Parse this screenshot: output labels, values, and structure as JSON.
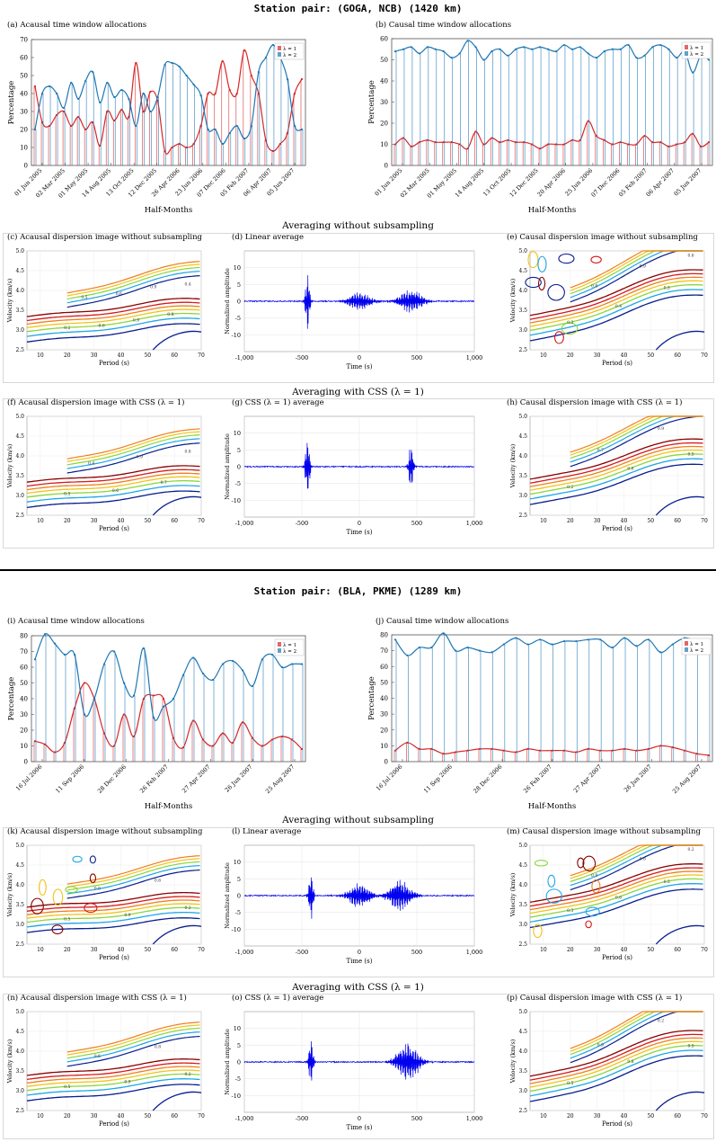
{
  "pairs": [
    {
      "title": "Station pair: (GOGA, NCB) (1420 km)",
      "allocation": {
        "acausal": {
          "title": "(a) Acausal time window allocations",
          "ylabel": "Percentage",
          "xlabel": "Half-Months",
          "legend": [
            "λ = 1",
            "λ = 2"
          ],
          "yticks": [
            "0",
            "10",
            "20",
            "30",
            "40",
            "50",
            "60",
            "70"
          ],
          "xticks": [
            "01 Jun 2005",
            "02 Mar 2005",
            "01 May 2005",
            "14 Aug 2005",
            "13 Oct 2005",
            "12 Dec 2005",
            "26 Apr 2006",
            "23 Jun 2006",
            "07 Dec 2006",
            "05 Feb 2007",
            "06 Apr 2007",
            "05 Jun 2007"
          ]
        },
        "causal": {
          "title": "(b) Causal time window allocations",
          "ylabel": "Percentage",
          "xlabel": "Half-Months",
          "legend": [
            "λ = 1",
            "λ = 2"
          ],
          "yticks": [
            "0",
            "10",
            "20",
            "30",
            "40",
            "50",
            "60"
          ],
          "xticks": [
            "01 Jun 2005",
            "02 Mar 2005",
            "01 May 2005",
            "14 Aug 2005",
            "13 Oct 2005",
            "12 Dec 2005",
            "20 Apr 2006",
            "25 Jun 2006",
            "07 Dec 2006",
            "05 Feb 2007",
            "06 Apr 2007",
            "05 Jun 2007"
          ]
        }
      },
      "section1": "Averaging without subsampling",
      "section2": "Averaging with CSS (λ = 1)",
      "panels_row1": [
        {
          "title": "(c) Acausal dispersion image without subsampling"
        },
        {
          "title": "(d) Linear average"
        },
        {
          "title": "(e) Causal dispersion image without subsampling"
        }
      ],
      "panels_row2": [
        {
          "title": "(f) Acausal dispersion image with CSS (λ = 1)"
        },
        {
          "title": "(g) CSS (λ = 1) average"
        },
        {
          "title": "(h) Causal dispersion image with CSS (λ = 1)"
        }
      ]
    },
    {
      "title": "Station pair: (BLA, PKME) (1289 km)",
      "allocation": {
        "acausal": {
          "title": "(i) Acausal time window allocations",
          "ylabel": "Percentage",
          "xlabel": "Half-Months",
          "legend": [
            "λ = 1",
            "λ = 2"
          ],
          "yticks": [
            "0",
            "10",
            "20",
            "30",
            "40",
            "50",
            "60",
            "70",
            "80"
          ],
          "xticks": [
            "16 Jul 2006",
            "11 Sep 2006",
            "28 Dec 2006",
            "26 Feb 2007",
            "27 Apr 2007",
            "26 Jun 2007",
            "25 Aug 2007"
          ]
        },
        "causal": {
          "title": "(j) Causal time window allocations",
          "ylabel": "Percentage",
          "xlabel": "Half-Months",
          "legend": [
            "λ = 1",
            "λ = 2"
          ],
          "yticks": [
            "0",
            "10",
            "20",
            "30",
            "40",
            "50",
            "60",
            "70",
            "80"
          ],
          "xticks": [
            "16 Jul 2006",
            "11 Sep 2006",
            "28 Dec 2006",
            "26 Feb 2007",
            "27 Apr 2007",
            "26 Jun 2007",
            "25 Aug 2007"
          ]
        }
      },
      "section1": "Averaging without subsampling",
      "section2": "Averaging with CSS (λ = 1)",
      "panels_row1": [
        {
          "title": "(k) Acausal dispersion image without subsampling"
        },
        {
          "title": "(l) Linear average"
        },
        {
          "title": "(m) Causal dispersion image without subsampling"
        }
      ],
      "panels_row2": [
        {
          "title": "(n) Acausal dispersion image with CSS (λ = 1)"
        },
        {
          "title": "(o) CSS (λ = 1) average"
        },
        {
          "title": "(p) Causal dispersion image with CSS (λ = 1)"
        }
      ]
    }
  ],
  "dispersion_axes": {
    "ylabel": "Velocity (km/s)",
    "xlabel": "Period (s)",
    "yticks": [
      "2.5",
      "3.0",
      "3.5",
      "4.0",
      "4.5",
      "5.0"
    ],
    "xticks": [
      "10",
      "20",
      "30",
      "40",
      "50",
      "60",
      "70"
    ]
  },
  "waveform_axes": {
    "ylabel": "Normalized amplitude",
    "xlabel": "Time (s)",
    "yticks": [
      "10",
      "5",
      "0",
      "-5",
      "-10"
    ],
    "xticks": [
      "-1,000",
      "-500",
      "0",
      "500",
      "1,000"
    ]
  },
  "colors": {
    "lambda1": "#d62728",
    "lambda2": "#1f77b4",
    "waveform": "#0000ee"
  },
  "chart_data": [
    {
      "id": "a",
      "type": "line",
      "title": "(a) Acausal time window allocations",
      "ylim": [
        0,
        70
      ],
      "series": [
        {
          "name": "λ = 1",
          "values": [
            44,
            24,
            22,
            28,
            30,
            22,
            27,
            20,
            24,
            11,
            30,
            25,
            31,
            27,
            57,
            30,
            41,
            36,
            8,
            10,
            12,
            10,
            12,
            22,
            40,
            40,
            58,
            42,
            40,
            64,
            50,
            40,
            14,
            8,
            12,
            18,
            40,
            48
          ]
        },
        {
          "name": "λ = 2",
          "values": [
            20,
            40,
            44,
            40,
            32,
            46,
            37,
            47,
            52,
            35,
            46,
            38,
            42,
            37,
            22,
            40,
            30,
            38,
            56,
            57,
            55,
            50,
            45,
            39,
            20,
            20,
            12,
            18,
            22,
            15,
            22,
            52,
            60,
            67,
            60,
            48,
            22,
            20
          ]
        }
      ]
    },
    {
      "id": "b",
      "type": "line",
      "title": "(b) Causal time window allocations",
      "ylim": [
        0,
        60
      ],
      "series": [
        {
          "name": "λ = 1",
          "values": [
            10,
            13,
            9,
            11,
            12,
            11,
            11,
            11,
            10,
            8,
            16,
            10,
            13,
            11,
            12,
            11,
            11,
            10,
            8,
            10,
            10,
            10,
            12,
            12,
            21,
            14,
            12,
            10,
            11,
            10,
            10,
            14,
            11,
            11,
            9,
            10,
            11,
            15,
            9,
            11
          ]
        },
        {
          "name": "λ = 2",
          "values": [
            54,
            55,
            56,
            53,
            56,
            55,
            54,
            51,
            53,
            59,
            56,
            50,
            54,
            55,
            52,
            55,
            56,
            55,
            56,
            55,
            54,
            57,
            55,
            56,
            53,
            51,
            54,
            55,
            55,
            57,
            51,
            52,
            56,
            57,
            55,
            51,
            54,
            44,
            52,
            50
          ]
        }
      ]
    },
    {
      "id": "i",
      "type": "line",
      "title": "(i) Acausal time window allocations",
      "ylim": [
        0,
        80
      ],
      "series": [
        {
          "name": "λ = 1",
          "values": [
            13,
            11,
            6,
            12,
            34,
            50,
            40,
            18,
            10,
            30,
            16,
            40,
            42,
            40,
            15,
            9,
            26,
            14,
            10,
            18,
            12,
            25,
            15,
            10,
            14,
            16,
            14,
            8
          ]
        },
        {
          "name": "λ = 2",
          "values": [
            65,
            81,
            75,
            68,
            68,
            30,
            40,
            62,
            70,
            50,
            42,
            72,
            28,
            35,
            40,
            55,
            66,
            56,
            52,
            62,
            64,
            58,
            48,
            65,
            68,
            60,
            62,
            62
          ]
        }
      ]
    },
    {
      "id": "j",
      "type": "line",
      "title": "(j) Causal time window allocations",
      "ylim": [
        0,
        80
      ],
      "series": [
        {
          "name": "λ = 1",
          "values": [
            7,
            12,
            8,
            8,
            5,
            6,
            7,
            8,
            8,
            7,
            6,
            8,
            7,
            7,
            7,
            6,
            8,
            7,
            7,
            8,
            7,
            8,
            10,
            9,
            7,
            5,
            4
          ]
        },
        {
          "name": "λ = 2",
          "values": [
            77,
            67,
            72,
            72,
            81,
            70,
            72,
            70,
            69,
            74,
            78,
            74,
            77,
            74,
            76,
            76,
            77,
            77,
            72,
            78,
            73,
            77,
            69,
            74,
            78,
            76,
            73
          ]
        }
      ]
    },
    {
      "id": "d",
      "type": "line",
      "title": "(d) Linear average",
      "xlim": [
        -1000,
        1000
      ],
      "ylim": [
        -15,
        15
      ],
      "bursts": [
        {
          "t": -450,
          "amp": 9
        },
        {
          "t": 0,
          "amp": 3
        },
        {
          "t": 450,
          "amp": 4
        }
      ]
    },
    {
      "id": "g",
      "type": "line",
      "title": "(g) CSS (λ = 1) average",
      "xlim": [
        -1000,
        1000
      ],
      "ylim": [
        -15,
        15
      ],
      "bursts": [
        {
          "t": -450,
          "amp": 9
        },
        {
          "t": 450,
          "amp": 7.5
        }
      ]
    },
    {
      "id": "l",
      "type": "line",
      "title": "(l) Linear average",
      "xlim": [
        -1000,
        1000
      ],
      "ylim": [
        -15,
        15
      ],
      "bursts": [
        {
          "t": -420,
          "amp": 8
        },
        {
          "t": 0,
          "amp": 4
        },
        {
          "t": 350,
          "amp": 5
        }
      ]
    },
    {
      "id": "o",
      "type": "line",
      "title": "(o) CSS (λ = 1) average",
      "xlim": [
        -1000,
        1000
      ],
      "ylim": [
        -15,
        15
      ],
      "bursts": [
        {
          "t": -420,
          "amp": 7.5
        },
        {
          "t": 420,
          "amp": 6
        }
      ]
    },
    {
      "id": "c",
      "type": "heatmap",
      "title": "(c) Acausal dispersion image without subsampling",
      "xlim": [
        5,
        70
      ],
      "ylim": [
        2.5,
        5.0
      ],
      "contour_labels": [
        "0.2",
        "0.5",
        "0.6",
        "0.6",
        "0.9",
        "0.9",
        "0.8",
        "0.4"
      ],
      "band_centers": [
        {
          "period": 10,
          "velocity": 3.1
        },
        {
          "period": 70,
          "velocity": 3.55
        }
      ]
    },
    {
      "id": "e",
      "type": "heatmap",
      "title": "(e) Causal dispersion image without subsampling",
      "xlim": [
        5,
        70
      ],
      "ylim": [
        2.5,
        5.0
      ],
      "contour_labels": [
        "0.3",
        "0.8",
        "0.4",
        "0.9",
        "0.5",
        "0.6"
      ],
      "band_centers": [
        {
          "period": 10,
          "velocity": 3.1
        },
        {
          "period": 70,
          "velocity": 4.3
        }
      ]
    },
    {
      "id": "f",
      "type": "heatmap",
      "title": "(f) Acausal dispersion image with CSS (λ = 1)",
      "xlim": [
        5,
        70
      ],
      "ylim": [
        2.5,
        5.0
      ],
      "contour_labels": [
        "0.5",
        "0.4",
        "0.6",
        "0.9",
        "0.7",
        "0.8"
      ],
      "band_centers": [
        {
          "period": 10,
          "velocity": 3.1
        },
        {
          "period": 70,
          "velocity": 3.5
        }
      ]
    },
    {
      "id": "h",
      "type": "heatmap",
      "title": "(h) Causal dispersion image with CSS (λ = 1)",
      "xlim": [
        5,
        70
      ],
      "ylim": [
        2.5,
        5.0
      ],
      "contour_labels": [
        "0.2",
        "0.7",
        "0.6",
        "0.9",
        "0.5"
      ],
      "band_centers": [
        {
          "period": 10,
          "velocity": 3.15
        },
        {
          "period": 70,
          "velocity": 4.2
        }
      ]
    },
    {
      "id": "k",
      "type": "heatmap",
      "title": "(k) Acausal dispersion image without subsampling",
      "xlim": [
        5,
        70
      ],
      "ylim": [
        2.5,
        5.0
      ],
      "contour_labels": [
        "0.5",
        "0.8",
        "0.9",
        "0.6",
        "0.2"
      ],
      "band_centers": [
        {
          "period": 10,
          "velocity": 3.2
        },
        {
          "period": 70,
          "velocity": 3.55
        }
      ]
    },
    {
      "id": "m",
      "type": "heatmap",
      "title": "(m) Causal dispersion image without subsampling",
      "xlim": [
        5,
        70
      ],
      "ylim": [
        2.5,
        5.0
      ],
      "contour_labels": [
        "0.3",
        "0.9",
        "0.6",
        "0.8",
        "0.5",
        "0.2"
      ],
      "band_centers": [
        {
          "period": 10,
          "velocity": 3.3
        },
        {
          "period": 70,
          "velocity": 4.3
        }
      ]
    },
    {
      "id": "n",
      "type": "heatmap",
      "title": "(n) Acausal dispersion image with CSS (λ = 1)",
      "xlim": [
        5,
        70
      ],
      "ylim": [
        2.5,
        5.0
      ],
      "contour_labels": [
        "0.5",
        "0.6",
        "0.9",
        "0.8",
        "0.2"
      ],
      "band_centers": [
        {
          "period": 10,
          "velocity": 3.15
        },
        {
          "period": 70,
          "velocity": 3.55
        }
      ]
    },
    {
      "id": "p",
      "type": "heatmap",
      "title": "(p) Causal dispersion image with CSS (λ = 1)",
      "xlim": [
        5,
        70
      ],
      "ylim": [
        2.5,
        5.0
      ],
      "contour_labels": [
        "0.5",
        "0.9",
        "0.8",
        "0.2",
        "0.5"
      ],
      "band_centers": [
        {
          "period": 10,
          "velocity": 3.1
        },
        {
          "period": 70,
          "velocity": 4.3
        }
      ]
    }
  ]
}
